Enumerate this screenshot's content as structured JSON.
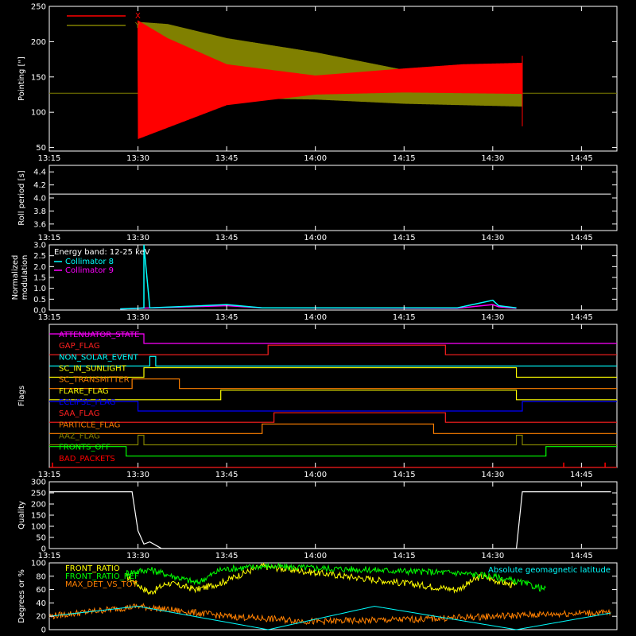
{
  "chart_data": [
    {
      "type": "line",
      "ylabel": "Pointing [\"]",
      "ylim": [
        45,
        250
      ],
      "yticks": [
        "50",
        "100",
        "150",
        "200",
        "250"
      ],
      "xticks": [
        "13:15",
        "13:30",
        "13:45",
        "14:00",
        "14:15",
        "14:30",
        "14:45"
      ],
      "series": [
        {
          "name": "X",
          "color": "#ff0000",
          "x": [
            "13:30",
            "13:35",
            "13:45",
            "14:00",
            "14:15",
            "14:25",
            "14:35"
          ],
          "ymin": [
            62,
            78,
            110,
            125,
            128,
            127,
            126
          ],
          "ymax": [
            230,
            205,
            168,
            152,
            162,
            168,
            170
          ]
        },
        {
          "name": "Y",
          "color": "#808000",
          "x": [
            "13:30",
            "13:35",
            "13:45",
            "14:00",
            "14:15",
            "14:25",
            "14:35"
          ],
          "ymin": [
            125,
            122,
            120,
            118,
            112,
            110,
            108
          ],
          "ymax": [
            228,
            225,
            205,
            185,
            160,
            155,
            152
          ]
        }
      ],
      "baseline": 127
    },
    {
      "type": "line",
      "ylabel": "Roll period [s]",
      "ylim": [
        3.5,
        4.5
      ],
      "yticks": [
        "3.6",
        "3.8",
        "4.0",
        "4.2",
        "4.4"
      ],
      "xticks": [
        "13:15",
        "13:30",
        "13:45",
        "14:00",
        "14:15",
        "14:30",
        "14:45"
      ],
      "series": [
        {
          "name": "",
          "color": "#ffffff",
          "x": [
            "13:15",
            "14:50"
          ],
          "y": [
            4.06,
            4.06
          ]
        }
      ]
    },
    {
      "type": "line",
      "ylabel": "Normalized modulation",
      "ylim": [
        0,
        3.0
      ],
      "yticks": [
        "0.0",
        "0.5",
        "1.0",
        "1.5",
        "2.0",
        "2.5",
        "3.0"
      ],
      "xticks": [
        "13:15",
        "13:30",
        "13:45",
        "14:00",
        "14:15",
        "14:30",
        "14:45"
      ],
      "annotation": "Energy band: 12-25 keV",
      "series": [
        {
          "name": "Collimator 8",
          "color": "#00ffff",
          "x": [
            "13:27",
            "13:30",
            "13:31",
            "13:31",
            "13:32",
            "13:45",
            "13:51",
            "14:24",
            "14:30",
            "14:31",
            "14:34"
          ],
          "y": [
            0.05,
            0.08,
            0.1,
            3.0,
            0.1,
            0.25,
            0.1,
            0.1,
            0.45,
            0.2,
            0.1
          ]
        },
        {
          "name": "Collimator 9",
          "color": "#ff00ff",
          "x": [
            "13:27",
            "13:30",
            "13:45",
            "13:51",
            "14:24",
            "14:30",
            "14:31",
            "14:34"
          ],
          "y": [
            0.05,
            0.08,
            0.2,
            0.1,
            0.08,
            0.25,
            0.15,
            0.08
          ]
        }
      ]
    },
    {
      "type": "line",
      "ylabel": "Flags",
      "xticks": [
        "13:15",
        "13:30",
        "13:45",
        "14:00",
        "14:15",
        "14:30",
        "14:45"
      ],
      "flags": [
        {
          "name": "ATTENUATOR_STATE",
          "color": "#ff00ff",
          "transitions": [
            "13:31"
          ],
          "start": "high"
        },
        {
          "name": "GAP_FLAG",
          "color": "#ff2020",
          "transitions": [
            "13:52",
            "14:22"
          ],
          "start": "low"
        },
        {
          "name": "NON_SOLAR_EVENT",
          "color": "#00ffff",
          "transitions": [
            "13:32",
            "13:33"
          ],
          "start": "low"
        },
        {
          "name": "SC_IN_SUNLIGHT",
          "color": "#ffff00",
          "transitions": [
            "13:31",
            "14:34"
          ],
          "start": "low"
        },
        {
          "name": "SC_TRANSMITTER",
          "color": "#ff8000",
          "transitions": [
            "13:29",
            "13:37"
          ],
          "start": "low"
        },
        {
          "name": "FLARE_FLAG",
          "color": "#ffff00",
          "transitions": [
            "13:44",
            "14:34"
          ],
          "start": "low"
        },
        {
          "name": "ECLIPSE_FLAG",
          "color": "#0000ff",
          "transitions": [
            "13:30",
            "14:35"
          ],
          "start": "high"
        },
        {
          "name": "SAA_FLAG",
          "color": "#ff2020",
          "transitions": [
            "13:53",
            "14:22"
          ],
          "start": "low"
        },
        {
          "name": "PARTICLE_FLAG",
          "color": "#ff8000",
          "transitions": [
            "13:51",
            "14:20"
          ],
          "start": "low"
        },
        {
          "name": "AAZ_FLAG",
          "color": "#808000",
          "transitions": [
            "13:30",
            "13:31",
            "14:34",
            "14:35"
          ],
          "start": "low"
        },
        {
          "name": "FRONTS_OFF",
          "color": "#00ff00",
          "transitions": [
            "13:28",
            "14:39"
          ],
          "start": "high"
        },
        {
          "name": "BAD_PACKETS",
          "color": "#ff0000",
          "transitions": [],
          "start": "low",
          "spikes": [
            "13:15",
            "14:42",
            "14:49"
          ]
        }
      ]
    },
    {
      "type": "line",
      "ylabel": "Quality",
      "ylim": [
        0,
        300
      ],
      "yticks": [
        "0",
        "50",
        "100",
        "150",
        "200",
        "250",
        "300"
      ],
      "xticks": [
        "13:15",
        "13:30",
        "13:45",
        "14:00",
        "14:15",
        "14:30",
        "14:45"
      ],
      "series": [
        {
          "name": "",
          "color": "#ffffff",
          "x": [
            "13:15",
            "13:29",
            "13:30",
            "13:31",
            "13:32",
            "13:33",
            "13:34",
            "14:34",
            "14:35",
            "14:50"
          ],
          "y": [
            255,
            255,
            80,
            20,
            30,
            15,
            0,
            0,
            255,
            255
          ]
        }
      ]
    },
    {
      "type": "line",
      "ylabel": "Degrees or %",
      "ylim": [
        0,
        100
      ],
      "yticks": [
        "0",
        "20",
        "40",
        "60",
        "80",
        "100"
      ],
      "xticks": [
        "13:15",
        "13:30",
        "13:45",
        "14:00",
        "14:15",
        "14:30",
        "14:45"
      ],
      "series": [
        {
          "name": "FRONT_RATIO",
          "color": "#ffff00",
          "x": [
            "13:28",
            "13:32",
            "13:35",
            "13:40",
            "13:44",
            "13:48",
            "13:51",
            "14:24",
            "14:28",
            "14:32",
            "14:34"
          ],
          "y": [
            80,
            55,
            70,
            60,
            70,
            85,
            95,
            60,
            80,
            70,
            65
          ]
        },
        {
          "name": "FRONT_RATIO_REF",
          "color": "#00ff00",
          "x": [
            "13:28",
            "13:32",
            "13:40",
            "13:44",
            "13:51",
            "14:24",
            "14:30",
            "14:35",
            "14:39"
          ],
          "y": [
            85,
            90,
            70,
            90,
            95,
            85,
            80,
            70,
            60
          ]
        },
        {
          "name": "MAX_DET_VS_TOT",
          "color": "#ff8000",
          "x": [
            "13:15",
            "13:30",
            "13:45",
            "14:00",
            "14:15",
            "14:30",
            "14:45",
            "14:50"
          ],
          "y": [
            20,
            35,
            20,
            12,
            15,
            20,
            25,
            25
          ]
        },
        {
          "name": "Absolute geomagnetic latitude",
          "color": "#00ffff",
          "x": [
            "13:15",
            "13:30",
            "13:52",
            "14:10",
            "14:34",
            "14:50"
          ],
          "y": [
            20,
            35,
            0,
            35,
            0,
            25
          ]
        }
      ]
    }
  ]
}
